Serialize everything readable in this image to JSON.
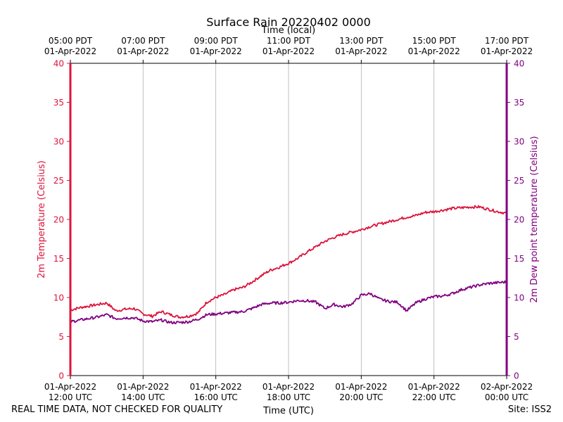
{
  "chart_data": {
    "type": "line",
    "title": "Surface Rain 20220402 0000",
    "top_xlabel": "Time (local)",
    "xlabel": "Time (UTC)",
    "ylabel_left": "2m Temperature (Celsius)",
    "ylabel_right": "2m Dew point temperature (Celsius)",
    "ylim": [
      0,
      40
    ],
    "yticks": [
      "0",
      "5",
      "10",
      "15",
      "20",
      "25",
      "30",
      "35",
      "40"
    ],
    "xlim_hours": [
      12,
      24
    ],
    "x_ticks_utc": [
      {
        "h": 12,
        "line1": "01-Apr-2022",
        "line2": "12:00 UTC"
      },
      {
        "h": 14,
        "line1": "01-Apr-2022",
        "line2": "14:00 UTC"
      },
      {
        "h": 16,
        "line1": "01-Apr-2022",
        "line2": "16:00 UTC"
      },
      {
        "h": 18,
        "line1": "01-Apr-2022",
        "line2": "18:00 UTC"
      },
      {
        "h": 20,
        "line1": "01-Apr-2022",
        "line2": "20:00 UTC"
      },
      {
        "h": 22,
        "line1": "01-Apr-2022",
        "line2": "22:00 UTC"
      },
      {
        "h": 24,
        "line1": "02-Apr-2022",
        "line2": "00:00 UTC"
      }
    ],
    "x_ticks_local": [
      {
        "h": 12,
        "line1": "05:00 PDT",
        "line2": "01-Apr-2022"
      },
      {
        "h": 14,
        "line1": "07:00 PDT",
        "line2": "01-Apr-2022"
      },
      {
        "h": 16,
        "line1": "09:00 PDT",
        "line2": "01-Apr-2022"
      },
      {
        "h": 18,
        "line1": "11:00 PDT",
        "line2": "01-Apr-2022"
      },
      {
        "h": 20,
        "line1": "13:00 PDT",
        "line2": "01-Apr-2022"
      },
      {
        "h": 22,
        "line1": "15:00 PDT",
        "line2": "01-Apr-2022"
      },
      {
        "h": 24,
        "line1": "17:00 PDT",
        "line2": "01-Apr-2022"
      }
    ],
    "grid": "vertical",
    "series": [
      {
        "name": "2m Temperature",
        "axis": "left",
        "color": "#dc143c",
        "x": [
          12.0,
          12.25,
          12.5,
          12.75,
          13.0,
          13.25,
          13.5,
          13.75,
          14.0,
          14.25,
          14.5,
          14.75,
          15.0,
          15.25,
          15.5,
          15.75,
          16.0,
          16.25,
          16.5,
          16.75,
          17.0,
          17.25,
          17.5,
          17.75,
          18.0,
          18.25,
          18.5,
          18.75,
          19.0,
          19.25,
          19.5,
          19.75,
          20.0,
          20.25,
          20.5,
          20.75,
          21.0,
          21.25,
          21.5,
          21.75,
          22.0,
          22.25,
          22.5,
          22.75,
          23.0,
          23.25,
          23.5,
          23.75,
          24.0
        ],
        "values": [
          8.4,
          8.7,
          8.9,
          9.1,
          9.3,
          8.3,
          8.5,
          8.6,
          7.9,
          7.6,
          8.2,
          7.8,
          7.5,
          7.6,
          8.0,
          9.4,
          10.0,
          10.4,
          11.0,
          11.3,
          12.0,
          12.8,
          13.5,
          13.9,
          14.4,
          15.0,
          15.8,
          16.5,
          17.2,
          17.7,
          18.1,
          18.4,
          18.7,
          19.1,
          19.4,
          19.7,
          20.0,
          20.3,
          20.5,
          20.9,
          21.0,
          21.2,
          21.4,
          21.5,
          21.6,
          21.6,
          21.3,
          21.0,
          20.8
        ]
      },
      {
        "name": "2m Dew point temperature",
        "axis": "right",
        "color": "#800080",
        "x": [
          12.0,
          12.25,
          12.5,
          12.75,
          13.0,
          13.25,
          13.5,
          13.75,
          14.0,
          14.25,
          14.5,
          14.75,
          15.0,
          15.25,
          15.5,
          15.75,
          16.0,
          16.25,
          16.5,
          16.75,
          17.0,
          17.25,
          17.5,
          17.75,
          18.0,
          18.25,
          18.5,
          18.75,
          19.0,
          19.25,
          19.5,
          19.75,
          20.0,
          20.25,
          20.5,
          20.75,
          21.0,
          21.25,
          21.5,
          21.75,
          22.0,
          22.25,
          22.5,
          22.75,
          23.0,
          23.25,
          23.5,
          23.75,
          24.0
        ],
        "values": [
          6.9,
          7.1,
          7.3,
          7.5,
          7.8,
          7.3,
          7.4,
          7.4,
          7.0,
          6.9,
          7.1,
          6.8,
          6.8,
          6.9,
          7.2,
          7.8,
          7.9,
          8.0,
          8.1,
          8.2,
          8.6,
          9.1,
          9.3,
          9.3,
          9.4,
          9.6,
          9.6,
          9.4,
          8.6,
          9.1,
          8.8,
          9.2,
          10.3,
          10.5,
          9.8,
          9.5,
          9.4,
          8.3,
          9.3,
          9.8,
          10.1,
          10.2,
          10.5,
          11.0,
          11.3,
          11.6,
          11.8,
          11.9,
          12.0
        ]
      }
    ]
  },
  "footer": {
    "disclaimer": "REAL TIME DATA, NOT CHECKED FOR QUALITY",
    "site": "Site: ISS2"
  }
}
